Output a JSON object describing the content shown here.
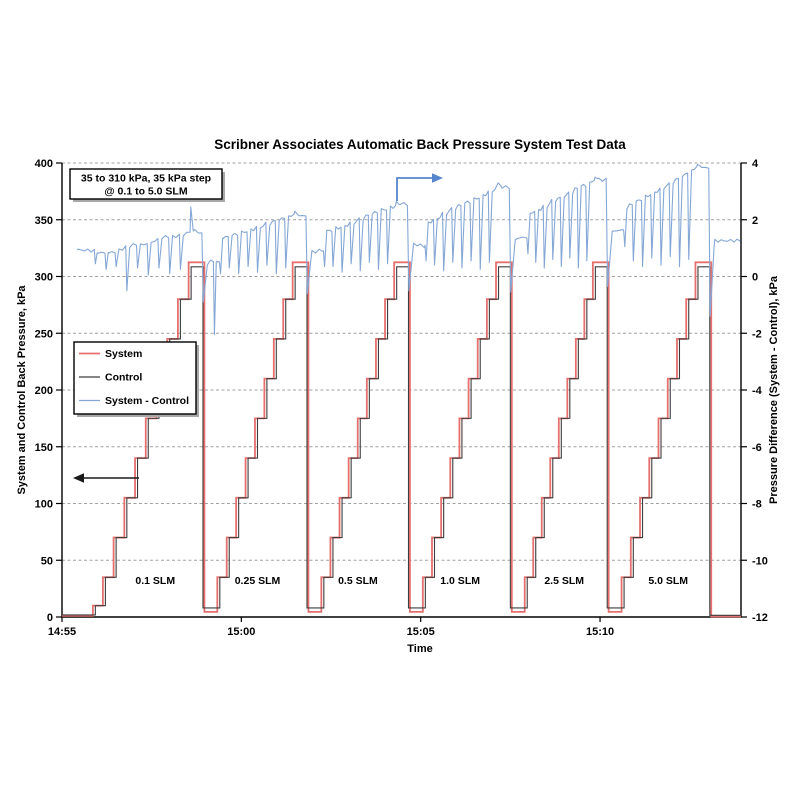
{
  "title": "Scribner Associates Automatic Back Pressure System Test Data",
  "annotation": {
    "line1": "35 to 310 kPa, 35 kPa step",
    "line2": "@  0.1 to 5.0 SLM"
  },
  "axes": {
    "x": {
      "label": "Time",
      "range": [
        0,
        18.93
      ],
      "ticks": [
        {
          "t": 0,
          "label": "14:55"
        },
        {
          "t": 5,
          "label": "15:00"
        },
        {
          "t": 10,
          "label": "15:05"
        },
        {
          "t": 15,
          "label": "15:10"
        }
      ]
    },
    "y_left": {
      "label": "System and Control Back Pressure, kPa",
      "min": 0,
      "max": 400,
      "step": 50
    },
    "y_right": {
      "label": "Pressure Difference (System - Control), kPa",
      "min": -12,
      "max": 4,
      "step": 2
    }
  },
  "arrows": {
    "left_color": "#1a1a1a",
    "right_color": "#5585cc"
  },
  "chart_data": {
    "type": "line",
    "x_unit": "minutes after 14:55",
    "step_levels": [
      35,
      70,
      105,
      140,
      175,
      210,
      245,
      280,
      310
    ],
    "series": [
      {
        "name": "System",
        "color": "#e5706d",
        "width": 1.8
      },
      {
        "name": "Control",
        "color": "#3d3d3d",
        "width": 1.1
      },
      {
        "name": "System - Control",
        "color": "#85a7d6",
        "width": 1.1
      }
    ],
    "ramps": [
      {
        "flow": "0.1 SLM",
        "label_t": 2.6,
        "start": 1.21,
        "top": 3.6,
        "drop": 3.93
      },
      {
        "flow": "0.25 SLM",
        "label_t": 5.45,
        "start": 4.4,
        "top": 6.5,
        "drop": 6.83
      },
      {
        "flow": "0.5 SLM",
        "label_t": 8.25,
        "start": 7.3,
        "top": 9.33,
        "drop": 9.66
      },
      {
        "flow": "1.0 SLM",
        "label_t": 11.1,
        "start": 10.13,
        "top": 12.17,
        "drop": 12.5
      },
      {
        "flow": "2.5 SLM",
        "label_t": 14.0,
        "start": 12.97,
        "top": 14.87,
        "drop": 15.2
      },
      {
        "flow": "5.0 SLM",
        "label_t": 16.9,
        "start": 15.67,
        "top": 17.73,
        "drop": 18.06
      }
    ],
    "pressure": {
      "initial_control": 1.8,
      "initial_system": 1.0,
      "prebump": {
        "t": 0.93,
        "level": 10
      },
      "hold_control": 8,
      "hold_system": 4.5,
      "top_control": 308.5,
      "top_system": 312.5,
      "tail_control": 1.5,
      "tail_system": 0.5,
      "system_rise_lead_min": 0.07,
      "system_fall_lag_min": 0.04
    },
    "diff": {
      "t0": 0.42,
      "v0": 0.93,
      "ramps": [
        {
          "start": 0.85,
          "end": 1.6,
          "peak": 2.45,
          "spike_floors": [
            0.35,
            -0.5,
            0.3,
            0.05,
            0.3,
            0.1,
            0.25
          ],
          "drop_spike": -0.9,
          "hold": 0.5,
          "post_drop_spike": {
            "dt": 0.32,
            "v": -2.05
          }
        },
        {
          "start": 1.35,
          "end": 2.2,
          "peak": 2.3,
          "spike_floors": [
            0.3,
            0.1,
            0.35,
            0.15,
            0.4,
            0.1,
            0.3
          ],
          "drop_spike": -0.6,
          "hold": 0.9
        },
        {
          "start": 1.55,
          "end": 2.55,
          "peak": 2.65,
          "spike_floors": [
            0.35,
            0.15,
            0.45,
            0.2,
            0.5,
            0.25,
            0.45
          ],
          "drop_spike": -0.5,
          "hold": 1.1
        },
        {
          "start": 1.9,
          "end": 3.2,
          "peak": 3.3,
          "spike_floors": [
            0.4,
            0.2,
            0.5,
            0.3,
            0.55,
            0.25,
            0.5
          ],
          "drop_spike": -0.55,
          "hold": 1.35
        },
        {
          "start": 2.2,
          "end": 3.45,
          "peak": 3.5,
          "spike_floors": [
            0.5,
            0.3,
            0.6,
            0.35,
            0.65,
            0.3,
            0.55
          ],
          "drop_spike": -0.35,
          "hold": 1.6
        },
        {
          "start": 2.4,
          "end": 3.9,
          "peak": 3.95,
          "spike_floors": [
            0.55,
            0.35,
            0.65,
            0.4,
            0.7,
            0.35,
            0.6
          ],
          "drop_spike": -1.4,
          "hold": 1.3
        }
      ]
    }
  }
}
